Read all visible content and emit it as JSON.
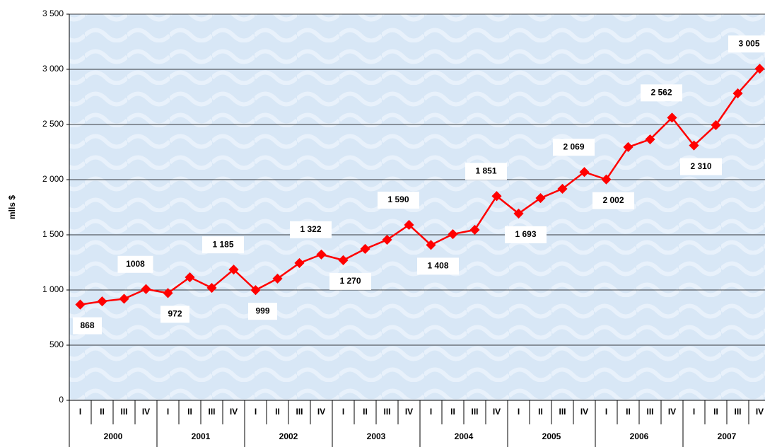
{
  "chart_data": {
    "type": "line",
    "y_label": "mlls $",
    "categories": [
      "I",
      "II",
      "III",
      "IV",
      "I",
      "II",
      "III",
      "IV",
      "I",
      "II",
      "III",
      "IV",
      "I",
      "II",
      "III",
      "IV",
      "I",
      "II",
      "III",
      "IV",
      "I",
      "II",
      "III",
      "IV",
      "I",
      "II",
      "III",
      "IV",
      "I",
      "II",
      "III",
      "IV"
    ],
    "years": [
      "2000",
      "2001",
      "2002",
      "2003",
      "2004",
      "2005",
      "2006",
      "2007"
    ],
    "series": [
      {
        "name": "mlls $",
        "color": "#ff0000",
        "values": [
          868,
          897,
          920,
          1008,
          972,
          1115,
          1019,
          1185,
          999,
          1103,
          1244,
          1322,
          1270,
          1372,
          1455,
          1590,
          1408,
          1506,
          1545,
          1851,
          1693,
          1833,
          1917,
          2069,
          2002,
          2295,
          2365,
          2562,
          2310,
          2494,
          2782,
          3005
        ],
        "value_labels": [
          "868",
          null,
          null,
          "1008",
          "972",
          null,
          null,
          "1 185",
          "999",
          null,
          null,
          "1 322",
          "1 270",
          null,
          null,
          "1 590",
          "1 408",
          null,
          null,
          "1 851",
          "1 693",
          null,
          null,
          "2 069",
          "2 002",
          null,
          null,
          "2 562",
          "2 310",
          null,
          null,
          "3 005"
        ]
      }
    ],
    "ylim": [
      0,
      3500
    ],
    "yticks": [
      0,
      {
        "value": 500,
        "label": "500"
      },
      {
        "value": 1000,
        "label": "1 000"
      },
      {
        "value": 1500,
        "label": "1 500"
      },
      {
        "value": 2000,
        "label": "2 000"
      },
      {
        "value": 2500,
        "label": "2 500"
      },
      {
        "value": 3000,
        "label": "3 000"
      },
      {
        "value": 3500,
        "label": "3 500"
      }
    ],
    "grid": true
  }
}
